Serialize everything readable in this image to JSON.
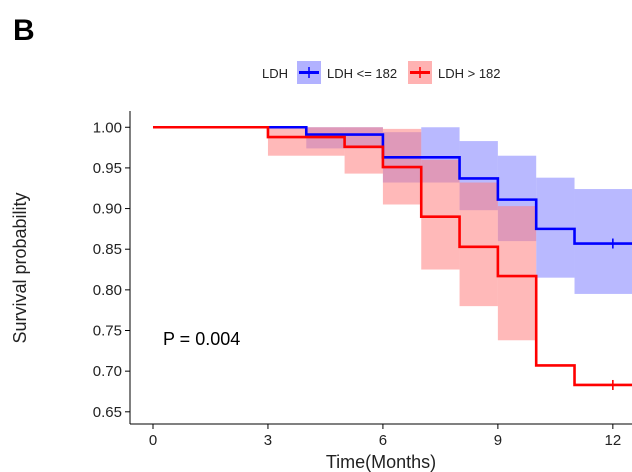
{
  "panel_label": "B",
  "chart_data": {
    "type": "line",
    "subtype": "kaplan-meier",
    "title": "",
    "xlabel": "Time(Months)",
    "ylabel": "Survival probability",
    "xlim": [
      -0.6,
      12.5
    ],
    "ylim": [
      0.635,
      1.02
    ],
    "x_ticks": [
      0,
      3,
      6,
      9,
      12
    ],
    "y_ticks": [
      0.65,
      0.7,
      0.75,
      0.8,
      0.85,
      0.9,
      0.95,
      1.0
    ],
    "y_tick_labels": [
      "0.65",
      "0.70",
      "0.75",
      "0.80",
      "0.85",
      "0.90",
      "0.95",
      "1.00"
    ],
    "grid": false,
    "legend": {
      "title": "LDH",
      "position": "top",
      "entries": [
        "LDH <= 182",
        "LDH > 182"
      ]
    },
    "annotation": "P = 0.004",
    "series": [
      {
        "name": "LDH <= 182",
        "color": "#0000ff",
        "ci_color": "#7f7fff",
        "steps": [
          {
            "x0": 0,
            "x1": 4,
            "y": 1.0,
            "lower": 1.0,
            "upper": 1.0
          },
          {
            "x0": 4,
            "x1": 6,
            "y": 0.991,
            "lower": 0.974,
            "upper": 1.0
          },
          {
            "x0": 6,
            "x1": 7,
            "y": 0.963,
            "lower": 0.932,
            "upper": 0.994
          },
          {
            "x0": 7,
            "x1": 8,
            "y": 0.963,
            "lower": 0.932,
            "upper": 1.0
          },
          {
            "x0": 8,
            "x1": 9,
            "y": 0.937,
            "lower": 0.898,
            "upper": 0.983
          },
          {
            "x0": 9,
            "x1": 10,
            "y": 0.911,
            "lower": 0.86,
            "upper": 0.965
          },
          {
            "x0": 10,
            "x1": 11,
            "y": 0.875,
            "lower": 0.815,
            "upper": 0.938
          },
          {
            "x0": 11,
            "x1": 12.5,
            "y": 0.857,
            "lower": 0.795,
            "upper": 0.924
          }
        ],
        "censor_x": [
          12
        ]
      },
      {
        "name": "LDH > 182",
        "color": "#ff0000",
        "ci_color": "#ff7f7f",
        "steps": [
          {
            "x0": 0,
            "x1": 3,
            "y": 1.0,
            "lower": 1.0,
            "upper": 1.0
          },
          {
            "x0": 3,
            "x1": 5,
            "y": 0.988,
            "lower": 0.965,
            "upper": 1.0
          },
          {
            "x0": 5,
            "x1": 6,
            "y": 0.976,
            "lower": 0.943,
            "upper": 1.0
          },
          {
            "x0": 6,
            "x1": 7,
            "y": 0.951,
            "lower": 0.905,
            "upper": 0.998
          },
          {
            "x0": 7,
            "x1": 8,
            "y": 0.89,
            "lower": 0.825,
            "upper": 0.96
          },
          {
            "x0": 8,
            "x1": 9,
            "y": 0.853,
            "lower": 0.78,
            "upper": 0.932
          },
          {
            "x0": 9,
            "x1": 10,
            "y": 0.817,
            "lower": 0.738,
            "upper": 0.903
          },
          {
            "x0": 10,
            "x1": 11,
            "y": 0.707,
            "lower": 0.707,
            "upper": 0.707
          },
          {
            "x0": 11,
            "x1": 12.5,
            "y": 0.683,
            "lower": 0.683,
            "upper": 0.683
          }
        ],
        "censor_x": [
          12
        ]
      }
    ]
  }
}
